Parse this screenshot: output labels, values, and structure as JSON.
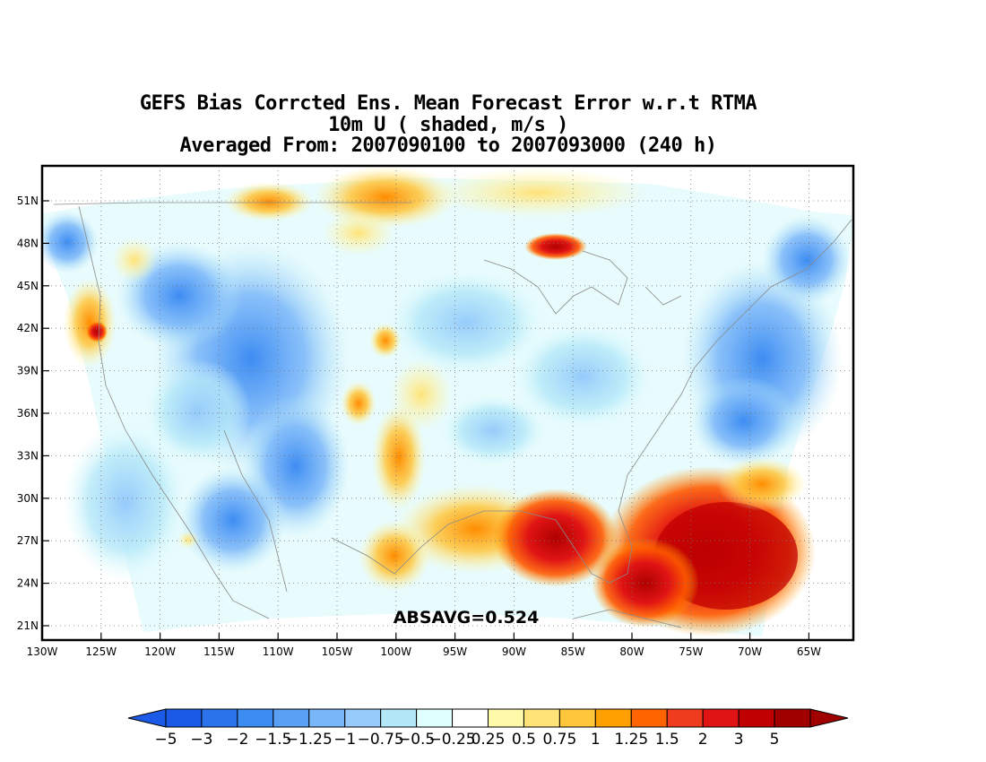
{
  "title": {
    "line1": "GEFS Bias Corrcted Ens. Mean Forecast Error w.r.t RTMA",
    "line2": "10m U ( shaded, m/s )",
    "line3": "Averaged From: 2007090100 to 2007093000 (240 h)"
  },
  "annotation": "ABSAVG=0.524",
  "map": {
    "lat_labels": [
      "51N",
      "48N",
      "45N",
      "42N",
      "39N",
      "36N",
      "33N",
      "30N",
      "27N",
      "24N",
      "21N"
    ],
    "lon_labels": [
      "130W",
      "125W",
      "120W",
      "115W",
      "110W",
      "105W",
      "100W",
      "95W",
      "90W",
      "85W",
      "80W",
      "75W",
      "70W",
      "65W"
    ],
    "grid": true,
    "grid_style": "dotted"
  },
  "colorbar": {
    "labels": [
      "-5",
      "-3",
      "-2",
      "-1.5",
      "-1.25",
      "-1",
      "-0.75",
      "-0.5",
      "-0.25",
      "0.25",
      "0.5",
      "0.75",
      "1",
      "1.25",
      "1.5",
      "2",
      "3",
      "5"
    ],
    "colors": [
      "#1a5ae6",
      "#2c74ec",
      "#3d8cf2",
      "#5aa0f5",
      "#79b6f9",
      "#96cbfb",
      "#b4e8f8",
      "#e0ffff",
      "#ffffff",
      "#fffaaa",
      "#ffe278",
      "#ffc63c",
      "#ffa000",
      "#ff6400",
      "#f03c1e",
      "#e01414",
      "#c00000",
      "#a00000"
    ]
  }
}
